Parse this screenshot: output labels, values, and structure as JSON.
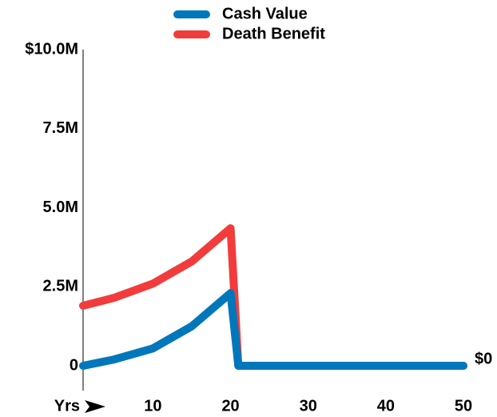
{
  "chart_data": {
    "type": "line",
    "x_label": "Yrs",
    "x": [
      1,
      5,
      10,
      15,
      20,
      21,
      50
    ],
    "series": [
      {
        "name": "Death Benefit",
        "color": "#f23c3c",
        "values": [
          1900000,
          2150000,
          2600000,
          3300000,
          4350000,
          0,
          0
        ]
      },
      {
        "name": "Cash Value",
        "color": "#0077bb",
        "values": [
          0,
          200000,
          550000,
          1250000,
          2300000,
          0,
          0
        ],
        "value_labels": [
          null,
          null,
          null,
          null,
          null,
          null,
          "$0"
        ]
      }
    ],
    "xlim": [
      1,
      50
    ],
    "xticks": [
      10,
      20,
      30,
      40,
      50
    ],
    "ylim": [
      0,
      10000000
    ],
    "yticks": [
      0,
      {
        "value": 2500000,
        "label": "2.5M"
      },
      {
        "value": 5000000,
        "label": "5.0M"
      },
      {
        "value": 7500000,
        "label": "7.5M"
      },
      {
        "value": 10000000,
        "label": "$10.0M"
      }
    ],
    "legend": "top"
  }
}
